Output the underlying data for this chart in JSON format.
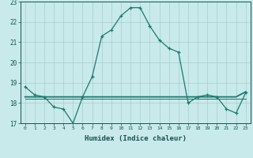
{
  "x": [
    0,
    1,
    2,
    3,
    4,
    5,
    6,
    7,
    8,
    9,
    10,
    11,
    12,
    13,
    14,
    15,
    16,
    17,
    18,
    19,
    20,
    21,
    22,
    23
  ],
  "humidex_main": [
    18.8,
    18.4,
    18.3,
    17.8,
    17.7,
    17.0,
    18.3,
    19.3,
    21.3,
    21.6,
    22.3,
    22.7,
    22.7,
    21.8,
    21.1,
    20.7,
    20.5,
    18.0,
    18.3,
    18.4,
    18.3,
    17.7,
    17.5,
    18.5
  ],
  "flat_line1": [
    18.3,
    18.3,
    18.3,
    18.3,
    18.3,
    18.3,
    18.3,
    18.3,
    18.3,
    18.3,
    18.3,
    18.3,
    18.3,
    18.3,
    18.3,
    18.3,
    18.3,
    18.3,
    18.3,
    18.3,
    18.3,
    18.3,
    18.3,
    18.55
  ],
  "flat_line2": [
    18.22,
    18.22,
    18.22,
    18.22,
    18.22,
    18.22,
    18.22,
    18.22,
    18.22,
    18.22,
    18.22,
    18.22,
    18.22,
    18.22,
    18.22,
    18.22,
    18.22,
    18.22,
    18.22,
    18.22,
    18.22,
    18.22,
    18.22,
    18.22
  ],
  "line_color": "#1a7a6e",
  "bg_color": "#c8eaea",
  "grid_color": "#a8cccc",
  "xlabel": "Humidex (Indice chaleur)",
  "ylim": [
    17,
    23
  ],
  "xlim": [
    -0.5,
    23.5
  ],
  "yticks": [
    17,
    18,
    19,
    20,
    21,
    22,
    23
  ],
  "xticks": [
    0,
    1,
    2,
    3,
    4,
    5,
    6,
    7,
    8,
    9,
    10,
    11,
    12,
    13,
    14,
    15,
    16,
    17,
    18,
    19,
    20,
    21,
    22,
    23
  ]
}
